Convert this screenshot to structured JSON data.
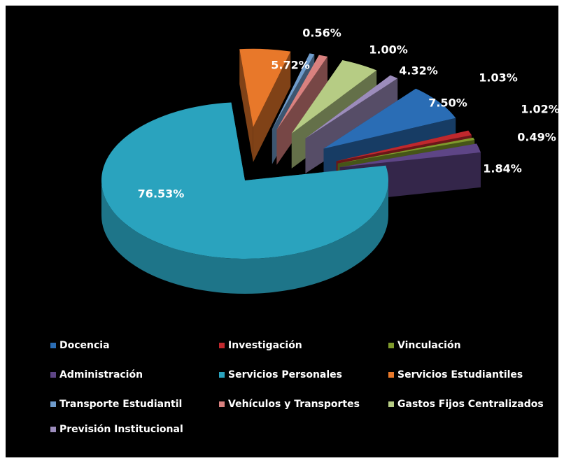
{
  "chart_data": {
    "type": "pie",
    "three_d": true,
    "categories": [
      "Docencia",
      "Investigación",
      "Vinculación",
      "Administración",
      "Servicios Personales",
      "Servicios Estudiantiles",
      "Transporte Estudiantil",
      "Vehículos y Transportes",
      "Gastos Fijos Centralizados",
      "Previsión Institucional"
    ],
    "values": [
      7.5,
      1.02,
      0.49,
      1.84,
      76.53,
      5.72,
      0.56,
      1.0,
      4.32,
      1.03
    ],
    "value_labels": [
      "7.50%",
      "1.02%",
      "0.49%",
      "1.84%",
      "76.53%",
      "5.72%",
      "0.56%",
      "1.00%",
      "4.32%",
      "1.03%"
    ],
    "colors": [
      "#2a6db5",
      "#c0282d",
      "#7f9a2c",
      "#5e4586",
      "#2aa3be",
      "#e8782a",
      "#6f9ccc",
      "#d9817f",
      "#b6cc84",
      "#9c8cbc"
    ],
    "legend": "bottom"
  }
}
